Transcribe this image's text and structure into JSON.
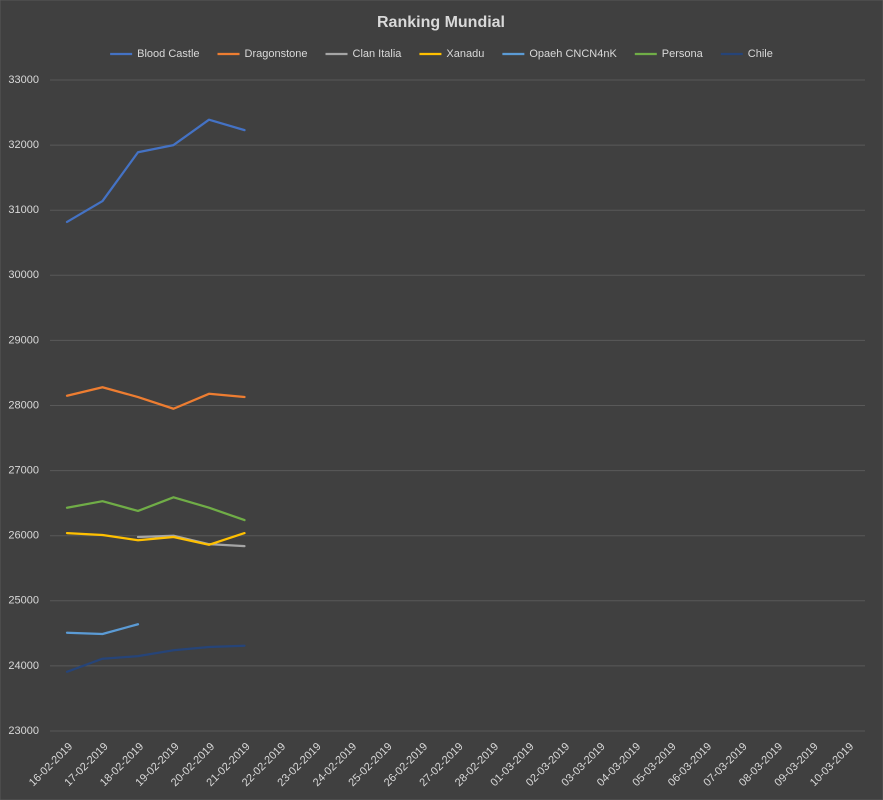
{
  "chart_data": {
    "type": "line",
    "title": "Ranking Mundial",
    "categories": [
      "16-02-2019",
      "17-02-2019",
      "18-02-2019",
      "19-02-2019",
      "20-02-2019",
      "21-02-2019",
      "22-02-2019",
      "23-02-2019",
      "24-02-2019",
      "25-02-2019",
      "26-02-2019",
      "27-02-2019",
      "28-02-2019",
      "01-03-2019",
      "02-03-2019",
      "03-03-2019",
      "04-03-2019",
      "05-03-2019",
      "06-03-2019",
      "07-03-2019",
      "08-03-2019",
      "09-03-2019",
      "10-03-2019"
    ],
    "series": [
      {
        "name": "Blood Castle",
        "color": "#4472c4",
        "values": [
          30820,
          31140,
          31890,
          32000,
          32390,
          32230,
          null,
          null,
          null,
          null,
          null,
          null,
          null,
          null,
          null,
          null,
          null,
          null,
          null,
          null,
          null,
          null,
          null
        ]
      },
      {
        "name": "Dragonstone",
        "color": "#ed7d31",
        "values": [
          28150,
          28280,
          28130,
          27950,
          28180,
          28130,
          null,
          null,
          null,
          null,
          null,
          null,
          null,
          null,
          null,
          null,
          null,
          null,
          null,
          null,
          null,
          null,
          null
        ]
      },
      {
        "name": "Clan Italia",
        "color": "#a5a5a5",
        "values": [
          null,
          null,
          25980,
          26000,
          25870,
          25840,
          null,
          null,
          null,
          null,
          null,
          null,
          null,
          null,
          null,
          null,
          null,
          null,
          null,
          null,
          null,
          null,
          null
        ]
      },
      {
        "name": "Xanadu",
        "color": "#ffc000",
        "values": [
          26040,
          26010,
          25930,
          25980,
          25860,
          26040,
          null,
          null,
          null,
          null,
          null,
          null,
          null,
          null,
          null,
          null,
          null,
          null,
          null,
          null,
          null,
          null,
          null
        ]
      },
      {
        "name": "Opaeh CNCN4nK",
        "color": "#5b9bd5",
        "values": [
          24510,
          24490,
          24640,
          null,
          null,
          null,
          null,
          null,
          null,
          null,
          null,
          null,
          null,
          null,
          null,
          null,
          null,
          null,
          null,
          null,
          null,
          null,
          null
        ]
      },
      {
        "name": "Persona",
        "color": "#70ad47",
        "values": [
          26430,
          26530,
          26380,
          26590,
          26430,
          26240,
          null,
          null,
          null,
          null,
          null,
          null,
          null,
          null,
          null,
          null,
          null,
          null,
          null,
          null,
          null,
          null,
          null
        ]
      },
      {
        "name": "Chile",
        "color": "#264478",
        "values": [
          23910,
          24110,
          24150,
          24240,
          24290,
          24310,
          null,
          null,
          null,
          null,
          null,
          null,
          null,
          null,
          null,
          null,
          null,
          null,
          null,
          null,
          null,
          null,
          null
        ]
      }
    ],
    "ylim": [
      23000,
      33000
    ],
    "yticks": [
      23000,
      24000,
      25000,
      26000,
      27000,
      28000,
      29000,
      30000,
      31000,
      32000,
      33000
    ],
    "grid": true,
    "legend": "top"
  }
}
